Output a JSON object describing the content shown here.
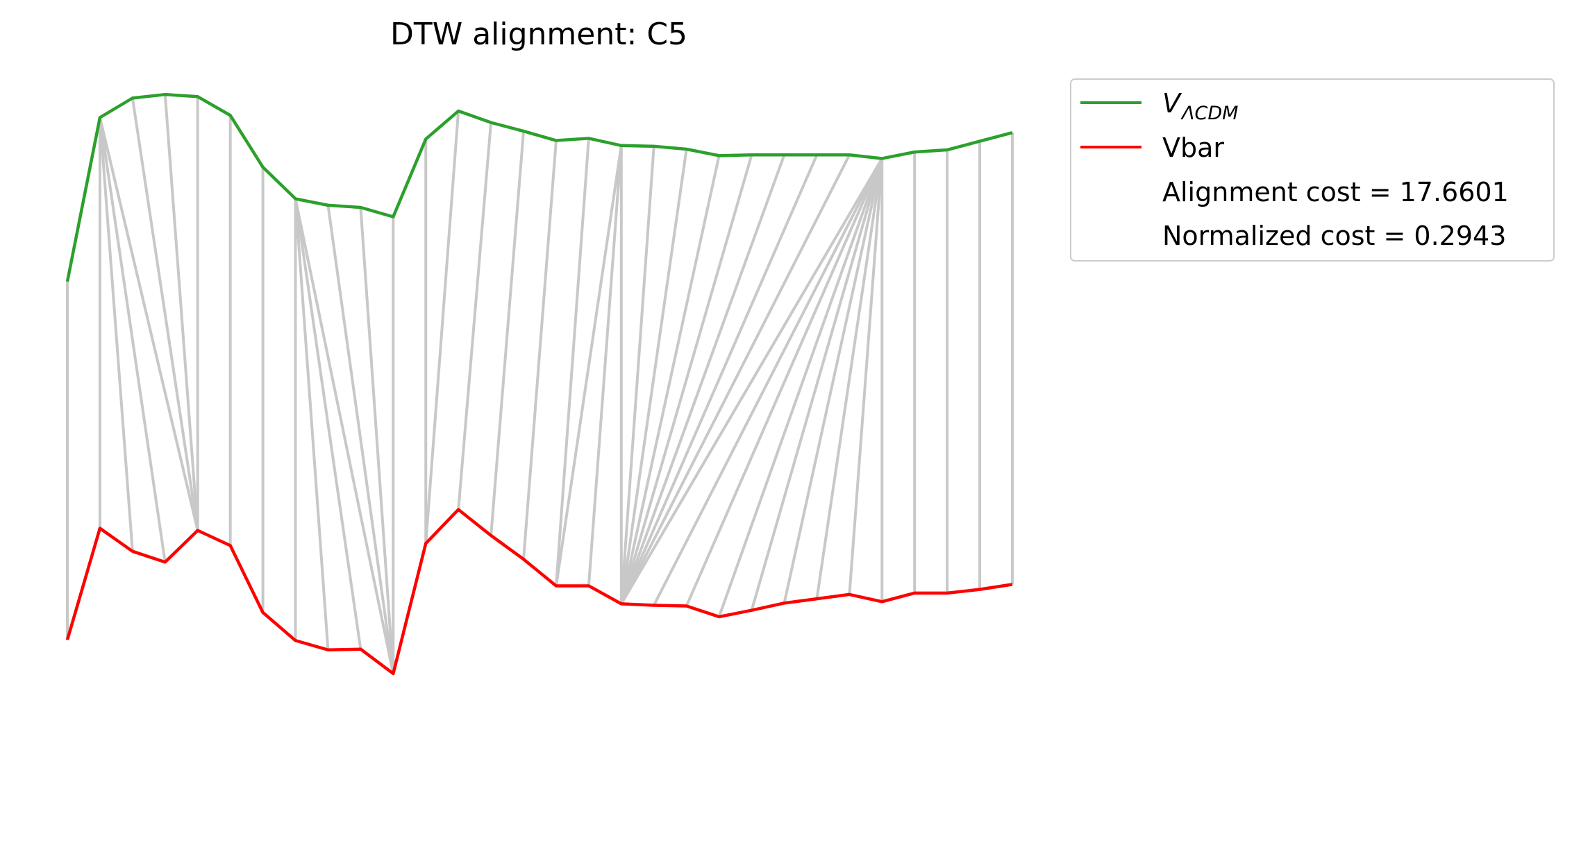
{
  "chart_data": {
    "type": "line",
    "title": "DTW alignment: C5",
    "xlabel": "",
    "ylabel": "",
    "axes_visible": false,
    "grid": false,
    "legend_placement": "outside upper-right",
    "x": [
      0,
      1,
      2,
      3,
      4,
      5,
      6,
      7,
      8,
      9,
      10,
      11,
      12,
      13,
      14,
      15,
      16,
      17,
      18,
      19,
      20,
      21,
      22,
      23,
      24,
      25,
      26,
      27,
      28,
      29
    ],
    "ylim": [
      0,
      1
    ],
    "series": [
      {
        "name": "V_{ΛCDM}",
        "name_main": "V",
        "name_subscript": "ΛCDM",
        "color": "#2ca02c",
        "values": [
          0.735,
          0.963,
          0.99,
          0.995,
          0.992,
          0.966,
          0.894,
          0.85,
          0.841,
          0.838,
          0.825,
          0.933,
          0.972,
          0.956,
          0.944,
          0.931,
          0.934,
          0.924,
          0.923,
          0.919,
          0.91,
          0.911,
          0.911,
          0.911,
          0.911,
          0.906,
          0.915,
          0.918,
          0.93,
          0.942
        ]
      },
      {
        "name": "Vbar",
        "color": "#ff0000",
        "values": [
          0.237,
          0.392,
          0.36,
          0.345,
          0.389,
          0.368,
          0.275,
          0.236,
          0.223,
          0.224,
          0.19,
          0.371,
          0.418,
          0.382,
          0.349,
          0.312,
          0.312,
          0.287,
          0.285,
          0.284,
          0.269,
          0.278,
          0.288,
          0.294,
          0.3,
          0.29,
          0.302,
          0.302,
          0.307,
          0.314
        ]
      }
    ],
    "alignment_pairs": [
      [
        0,
        0
      ],
      [
        1,
        1
      ],
      [
        1,
        2
      ],
      [
        1,
        3
      ],
      [
        1,
        4
      ],
      [
        2,
        4
      ],
      [
        3,
        4
      ],
      [
        4,
        4
      ],
      [
        5,
        5
      ],
      [
        6,
        6
      ],
      [
        7,
        7
      ],
      [
        7,
        8
      ],
      [
        7,
        9
      ],
      [
        7,
        10
      ],
      [
        8,
        10
      ],
      [
        9,
        10
      ],
      [
        10,
        10
      ],
      [
        11,
        11
      ],
      [
        12,
        11
      ],
      [
        13,
        12
      ],
      [
        14,
        13
      ],
      [
        15,
        14
      ],
      [
        16,
        15
      ],
      [
        17,
        15
      ],
      [
        17,
        16
      ],
      [
        17,
        17
      ],
      [
        18,
        17
      ],
      [
        19,
        17
      ],
      [
        20,
        17
      ],
      [
        21,
        17
      ],
      [
        22,
        17
      ],
      [
        23,
        17
      ],
      [
        24,
        17
      ],
      [
        25,
        17
      ],
      [
        25,
        18
      ],
      [
        25,
        19
      ],
      [
        25,
        20
      ],
      [
        25,
        21
      ],
      [
        25,
        22
      ],
      [
        25,
        23
      ],
      [
        25,
        24
      ],
      [
        25,
        25
      ],
      [
        26,
        26
      ],
      [
        27,
        27
      ],
      [
        28,
        28
      ],
      [
        29,
        29
      ]
    ],
    "alignment_color": "#c8c8c8",
    "legend_extra": [
      "Alignment cost = 17.6601",
      "Normalized cost = 0.2943"
    ]
  }
}
